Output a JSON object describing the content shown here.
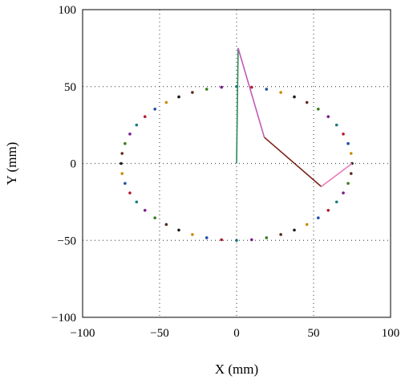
{
  "chart_data": {
    "type": "scatter",
    "title": "",
    "xlabel": "X (mm)",
    "ylabel": "Y (mm)",
    "xlim": [
      -100,
      100
    ],
    "ylim": [
      -100,
      100
    ],
    "xticks": [
      -100,
      -50,
      0,
      50,
      100
    ],
    "yticks": [
      -100,
      -50,
      0,
      50,
      100
    ],
    "xtick_labels": [
      "−100",
      "−50",
      "0",
      "50",
      "100"
    ],
    "ytick_labels": [
      "−100",
      "−50",
      "0",
      "50",
      "100"
    ],
    "grid": true,
    "legend": "none",
    "ellipse_points": {
      "center": [
        0,
        0
      ],
      "semi_axis_x": 75,
      "semi_axis_y": 50,
      "count": 48,
      "colors": [
        "#1a1a1a",
        "#c98a00",
        "#1f4ea8",
        "#b01e2e",
        "#157a82",
        "#7a1d8f",
        "#3a7d1e",
        "#5a2a1a"
      ]
    },
    "links": [
      {
        "from": [
          0,
          0
        ],
        "to": [
          1,
          75
        ],
        "color": "#2e8b57"
      },
      {
        "from": [
          1,
          75
        ],
        "to": [
          18,
          17
        ],
        "color": "#c25ab8"
      },
      {
        "from": [
          18,
          17
        ],
        "to": [
          55,
          -15
        ],
        "color": "#7a2418"
      },
      {
        "from": [
          55,
          -15
        ],
        "to": [
          75,
          0
        ],
        "color": "#e87ab8"
      }
    ]
  }
}
